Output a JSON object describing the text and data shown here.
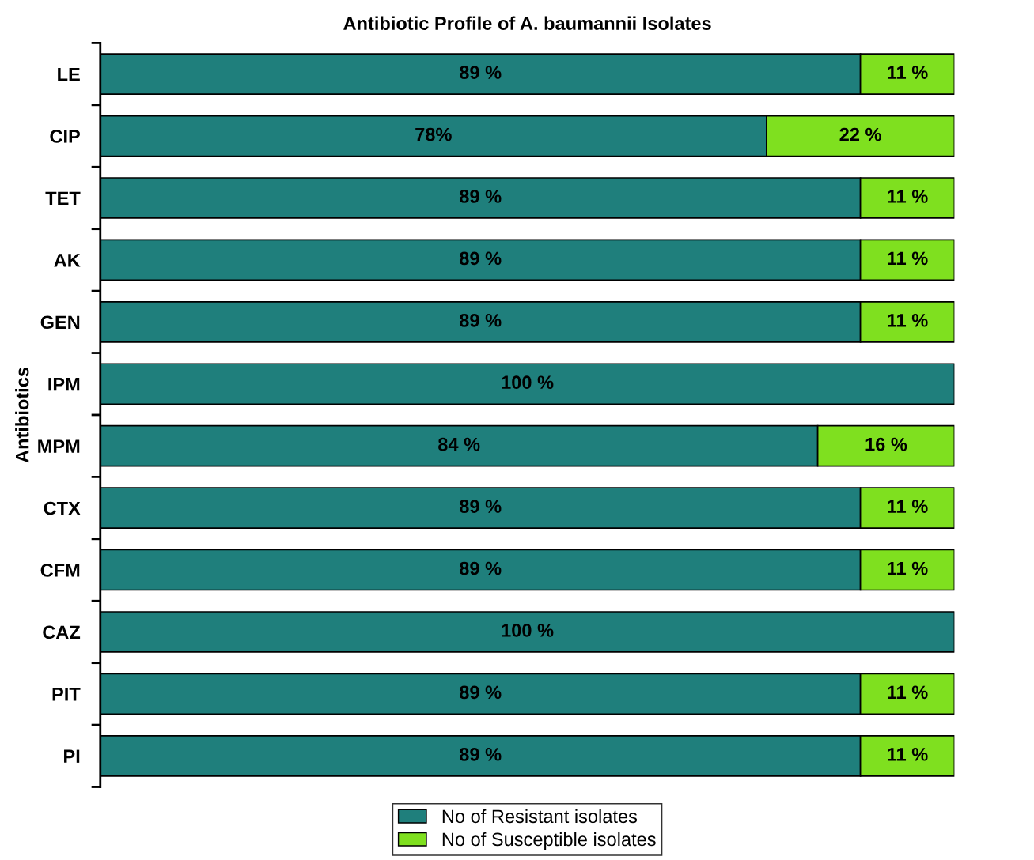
{
  "chart_data": {
    "type": "bar",
    "orientation": "horizontal",
    "stacked": true,
    "title": "Antibiotic Profile of A. baumannii Isolates",
    "ylabel": "Antibiotics",
    "categories": [
      "LE",
      "CIP",
      "TET",
      "AK",
      "GEN",
      "IPM",
      "MPM",
      "CTX",
      "CFM",
      "CAZ",
      "PIT",
      "PI"
    ],
    "xlim": [
      0,
      100
    ],
    "legend": "bottom",
    "series": [
      {
        "name": "No of Resistant isolates",
        "color": "#1f7f7c",
        "values": [
          89,
          78,
          89,
          89,
          89,
          100,
          84,
          89,
          89,
          100,
          89,
          89
        ],
        "value_labels": [
          "89 %",
          "78%",
          "89 %",
          "89 %",
          "89 %",
          "100 %",
          "84 %",
          "89 %",
          "89 %",
          "100 %",
          "89 %",
          "89 %"
        ]
      },
      {
        "name": "No of Susceptible isolates",
        "color": "#7fe01f",
        "values": [
          11,
          22,
          11,
          11,
          11,
          null,
          16,
          11,
          11,
          null,
          11,
          11
        ],
        "value_labels": [
          "11 %",
          "22 %",
          "11 %",
          "11 %",
          "11 %",
          null,
          "16 %",
          "11 %",
          "11 %",
          null,
          "11 %",
          "11 %"
        ]
      }
    ]
  }
}
